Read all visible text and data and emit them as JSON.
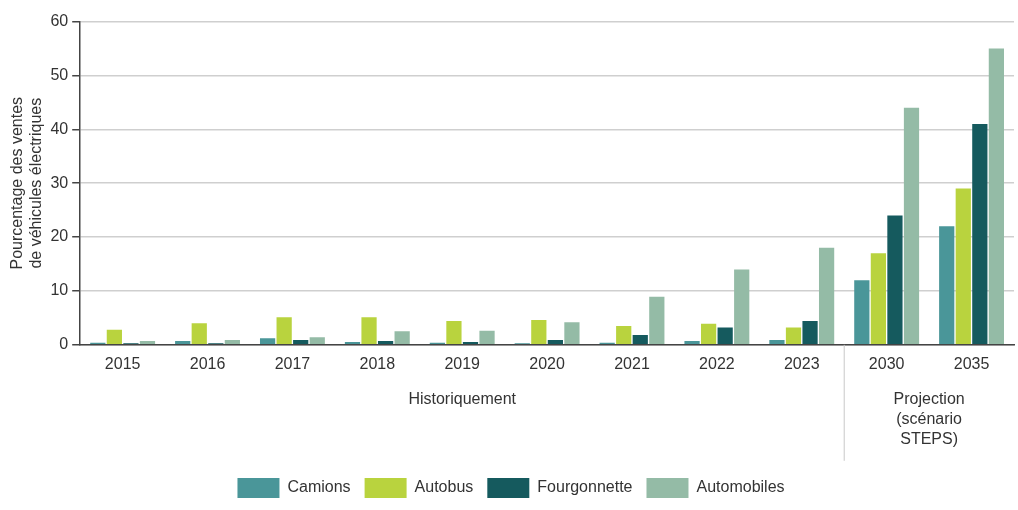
{
  "chart_data": {
    "type": "bar",
    "ylabel": "Pourcentage des ventes de véhicules électriques",
    "categories": [
      "2015",
      "2016",
      "2017",
      "2018",
      "2019",
      "2020",
      "2021",
      "2022",
      "2023",
      "2030",
      "2035"
    ],
    "series": [
      {
        "name": "Camions",
        "color": "#4a9699",
        "values": [
          0.4,
          0.7,
          1.2,
          0.5,
          0.4,
          0.3,
          0.4,
          0.7,
          0.9,
          12,
          22
        ]
      },
      {
        "name": "Autobus",
        "color": "#b9d33e",
        "values": [
          2.8,
          4.0,
          5.1,
          5.1,
          4.4,
          4.6,
          3.5,
          3.9,
          3.2,
          17,
          29
        ]
      },
      {
        "name": "Fourgonnette",
        "color": "#155a5e",
        "values": [
          0.3,
          0.3,
          0.9,
          0.7,
          0.5,
          0.9,
          1.8,
          3.2,
          4.4,
          24,
          41
        ]
      },
      {
        "name": "Automobiles",
        "color": "#94bba6",
        "values": [
          0.7,
          0.9,
          1.4,
          2.5,
          2.6,
          4.2,
          8.9,
          14,
          18,
          44,
          55
        ]
      }
    ],
    "ylim": [
      0,
      60
    ],
    "yticks": [
      0,
      10,
      20,
      30,
      40,
      50,
      60
    ],
    "grid": "y",
    "legend": "bottom",
    "annotations": [
      "Historiquement",
      "Projection (scénario STEPS)"
    ]
  }
}
